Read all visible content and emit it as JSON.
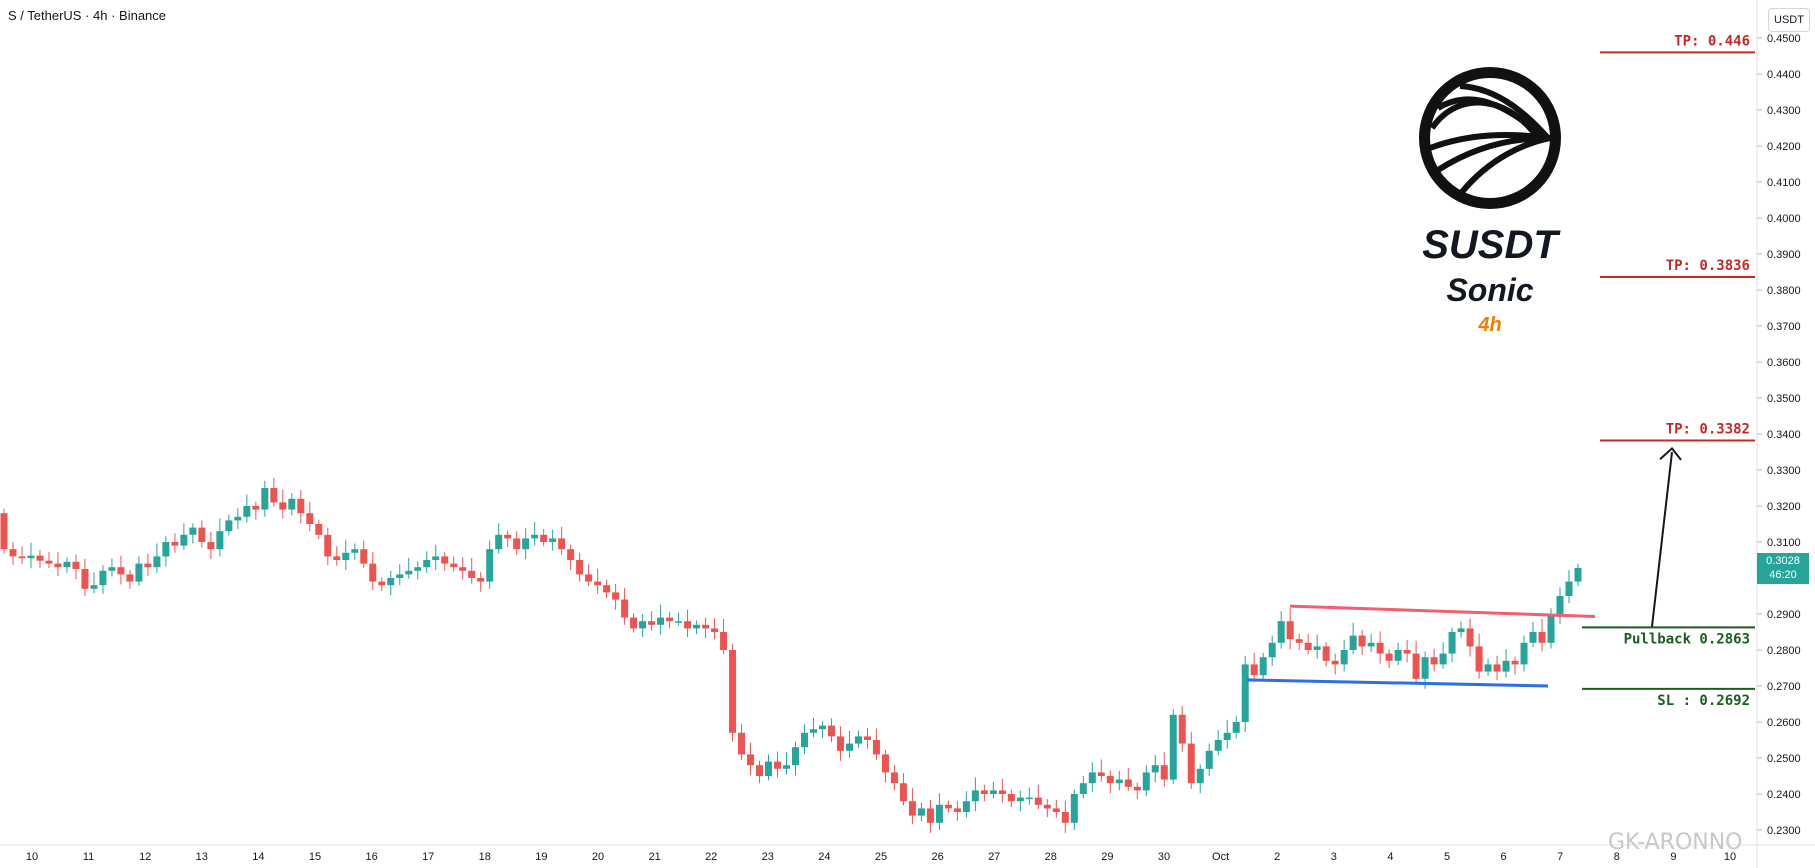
{
  "header": {
    "symbol_line": "S / TetherUS · 4h · Binance"
  },
  "currency": "USDT",
  "brand": {
    "ticker": "SUSDT",
    "name": "Sonic",
    "timeframe": "4h"
  },
  "watermark": "GK-ARONNO",
  "colors": {
    "up": "#26a69a",
    "down": "#ef5350",
    "level": "#c62828",
    "support": "#1b5e20",
    "resistance_line": "#f06070",
    "support_line": "#2f6fe0",
    "axis_text": "#131722"
  },
  "current_price": {
    "value": "0.3028",
    "timer": "46:20"
  },
  "chart_data": {
    "type": "candlestick",
    "y_axis": {
      "min": 0.23,
      "max": 0.45,
      "ticks": [
        "0.4500",
        "0.4400",
        "0.4300",
        "0.4200",
        "0.4100",
        "0.4000",
        "0.3900",
        "0.3800",
        "0.3700",
        "0.3600",
        "0.3500",
        "0.3400",
        "0.3300",
        "0.3200",
        "0.3100",
        "0.3000",
        "0.2900",
        "0.2800",
        "0.2700",
        "0.2600",
        "0.2500",
        "0.2400",
        "0.2300"
      ]
    },
    "x_axis": {
      "labels": [
        "10",
        "11",
        "12",
        "13",
        "14",
        "15",
        "16",
        "17",
        "18",
        "19",
        "20",
        "21",
        "22",
        "23",
        "24",
        "25",
        "26",
        "27",
        "28",
        "29",
        "30",
        "Oct",
        "2",
        "3",
        "4",
        "5",
        "6",
        "7",
        "8",
        "9",
        "10"
      ]
    },
    "levels": [
      {
        "label": "TP: 0.446",
        "value": 0.446,
        "kind": "tp"
      },
      {
        "label": "TP: 0.3836",
        "value": 0.3836,
        "kind": "tp"
      },
      {
        "label": "TP: 0.3382",
        "value": 0.3382,
        "kind": "tp"
      },
      {
        "label": "Pullback 0.2863",
        "value": 0.2863,
        "kind": "pullback"
      },
      {
        "label": "SL : 0.2692",
        "value": 0.2692,
        "kind": "sl"
      }
    ],
    "closes": [
      0.308,
      0.306,
      0.3055,
      0.3062,
      0.3048,
      0.304,
      0.303,
      0.3045,
      0.3025,
      0.297,
      0.298,
      0.302,
      0.303,
      0.301,
      0.299,
      0.304,
      0.303,
      0.306,
      0.31,
      0.309,
      0.312,
      0.314,
      0.31,
      0.308,
      0.313,
      0.316,
      0.317,
      0.32,
      0.319,
      0.325,
      0.321,
      0.319,
      0.322,
      0.318,
      0.315,
      0.312,
      0.306,
      0.305,
      0.307,
      0.308,
      0.304,
      0.299,
      0.298,
      0.3,
      0.301,
      0.302,
      0.303,
      0.305,
      0.306,
      0.304,
      0.303,
      0.302,
      0.3,
      0.299,
      0.308,
      0.312,
      0.311,
      0.308,
      0.311,
      0.312,
      0.31,
      0.311,
      0.308,
      0.305,
      0.301,
      0.299,
      0.298,
      0.296,
      0.294,
      0.289,
      0.286,
      0.288,
      0.287,
      0.289,
      0.288,
      0.288,
      0.286,
      0.287,
      0.286,
      0.285,
      0.28,
      0.257,
      0.251,
      0.248,
      0.245,
      0.249,
      0.247,
      0.248,
      0.253,
      0.257,
      0.258,
      0.259,
      0.256,
      0.252,
      0.254,
      0.256,
      0.255,
      0.251,
      0.246,
      0.243,
      0.238,
      0.234,
      0.236,
      0.232,
      0.237,
      0.236,
      0.235,
      0.238,
      0.241,
      0.24,
      0.241,
      0.24,
      0.238,
      0.239,
      0.239,
      0.237,
      0.236,
      0.235,
      0.232,
      0.24,
      0.243,
      0.246,
      0.245,
      0.243,
      0.244,
      0.242,
      0.241,
      0.246,
      0.248,
      0.244,
      0.262,
      0.254,
      0.243,
      0.247,
      0.252,
      0.255,
      0.257,
      0.26,
      0.276,
      0.273,
      0.278,
      0.282,
      0.288,
      0.283,
      0.282,
      0.28,
      0.281,
      0.277,
      0.276,
      0.28,
      0.284,
      0.281,
      0.282,
      0.279,
      0.277,
      0.28,
      0.279,
      0.272,
      0.278,
      0.276,
      0.279,
      0.285,
      0.286,
      0.281,
      0.274,
      0.276,
      0.274,
      0.277,
      0.276,
      0.282,
      0.285,
      0.282,
      0.29,
      0.295,
      0.299,
      0.3028
    ]
  }
}
